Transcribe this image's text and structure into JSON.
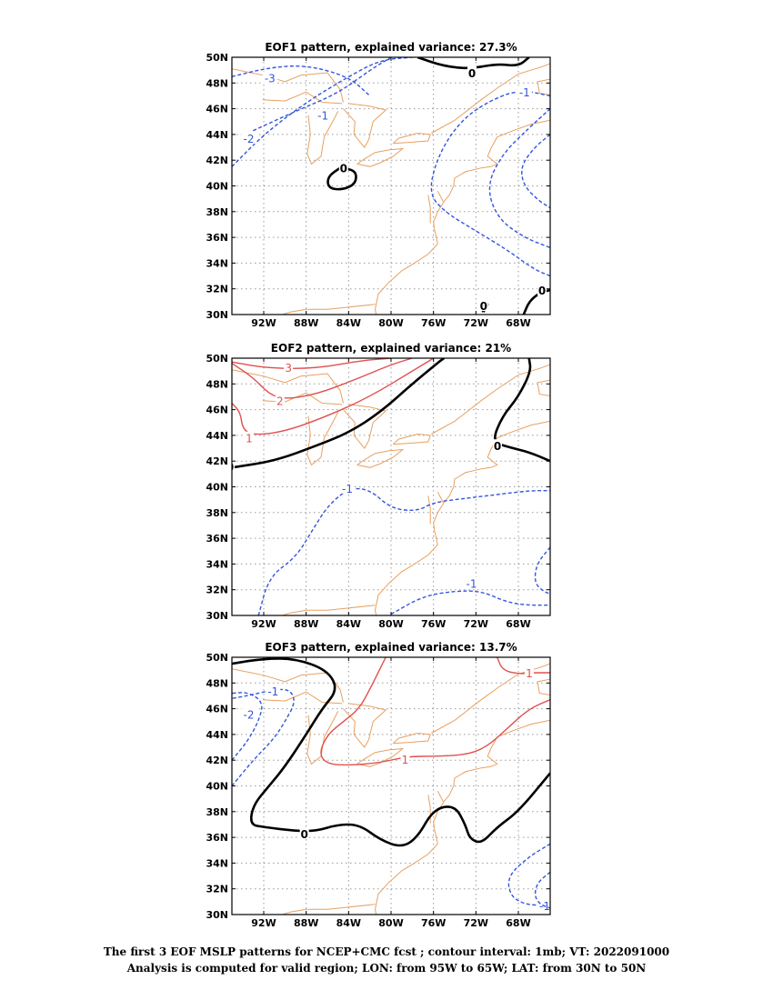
{
  "panels": [
    {
      "title": "EOF1 pattern, explained variance: 27.3%",
      "contours": [
        {
          "value": "-3",
          "color": "#3355dd",
          "dashed": true,
          "lon": [
            -95,
            -91.5,
            -88,
            -84,
            -82
          ],
          "lat": [
            48.5,
            49.2,
            49.4,
            48.5,
            47
          ],
          "label": "-3",
          "label_lon": -91.5,
          "label_lat": 48.4
        },
        {
          "value": "-2",
          "color": "#3355dd",
          "dashed": true,
          "lon": [
            -95,
            -92,
            -88,
            -84,
            -81,
            -78
          ],
          "lat": [
            41.5,
            44,
            46.5,
            48.5,
            49.8,
            50
          ],
          "label": "-2",
          "label_lon": -93.5,
          "label_lat": 43.7
        },
        {
          "value": "-1",
          "color": "#3355dd",
          "dashed": true,
          "lon": [
            -93,
            -89,
            -85,
            -82,
            -80
          ],
          "lat": [
            44.3,
            45.8,
            47.2,
            49,
            50
          ],
          "label": "-1",
          "label_lon": -86.5,
          "label_lat": 45.5
        },
        {
          "value": "-1",
          "color": "#3355dd",
          "dashed": true,
          "lon": [
            -65,
            -68,
            -71,
            -73.5,
            -75.5,
            -76.5,
            -75,
            -72,
            -69,
            -66.5,
            -65
          ],
          "lat": [
            47,
            47.5,
            46.5,
            45,
            42.5,
            39.5,
            38,
            36.5,
            35,
            33.5,
            33
          ],
          "label": "-1",
          "label_lon": -67.5,
          "label_lat": 47.3
        },
        {
          "value": "-2",
          "color": "#3355dd",
          "dashed": true,
          "lon": [
            -65,
            -67,
            -69.5,
            -71,
            -70,
            -67.5,
            -65
          ],
          "lat": [
            46,
            44.5,
            42.5,
            40,
            37.5,
            36,
            35.2
          ],
          "label": "",
          "label_lon": 0,
          "label_lat": 0
        },
        {
          "value": "-3",
          "color": "#3355dd",
          "dashed": true,
          "lon": [
            -65,
            -66.5,
            -67.8,
            -67.5,
            -66,
            -65
          ],
          "lat": [
            44,
            43,
            41.5,
            40,
            38.8,
            38.3
          ],
          "label": "",
          "label_lon": 0,
          "label_lat": 0
        },
        {
          "value": "0",
          "color": "#000000",
          "dashed": false,
          "lon": [
            -77.5,
            -75,
            -72.5,
            -70,
            -68,
            -67
          ],
          "lat": [
            50,
            49.3,
            49.1,
            49.5,
            49.3,
            50
          ],
          "label": "0",
          "label_lon": -72.2,
          "label_lat": 48.8
        },
        {
          "value": "0",
          "color": "#000000",
          "dashed": false,
          "lon": [
            -84.8,
            -83.3,
            -83.3,
            -84.5,
            -85.9,
            -86,
            -84.8
          ],
          "lat": [
            41.4,
            41.2,
            40.2,
            39.7,
            39.8,
            40.7,
            41.4
          ],
          "label": "0",
          "label_lon": -84.3,
          "label_lat": 41.4
        },
        {
          "value": "0",
          "color": "#000000",
          "dashed": false,
          "lon": [
            -67.5,
            -67,
            -66,
            -65
          ],
          "lat": [
            30,
            31,
            31.7,
            31.9
          ],
          "label": "0",
          "label_lon": -65.6,
          "label_lat": 31.9
        },
        {
          "value": "0",
          "color": "#000000",
          "dashed": false,
          "lon": [
            -71.3,
            -70.8,
            -71.2,
            -71.6,
            -71.3
          ],
          "lat": [
            30.2,
            30.8,
            31.1,
            30.7,
            30.2
          ],
          "label": "0",
          "label_lon": -71.1,
          "label_lat": 30.7
        }
      ]
    },
    {
      "title": "EOF2 pattern, explained variance: 21%",
      "contours": [
        {
          "value": "3",
          "color": "#e05050",
          "dashed": false,
          "lon": [
            -95,
            -91.5,
            -87,
            -83,
            -80
          ],
          "lat": [
            49.7,
            49.2,
            49.2,
            49.8,
            50
          ],
          "label": "3",
          "label_lon": -89.5,
          "label_lat": 49.3
        },
        {
          "value": "2",
          "color": "#e05050",
          "dashed": false,
          "lon": [
            -95,
            -93,
            -91.5,
            -90,
            -87,
            -83.5,
            -80,
            -78
          ],
          "lat": [
            49.6,
            48.5,
            47.2,
            46.8,
            47.2,
            48.3,
            49.5,
            50
          ],
          "label": "2",
          "label_lon": -90.3,
          "label_lat": 46.7
        },
        {
          "value": "1",
          "color": "#e05050",
          "dashed": false,
          "lon": [
            -95,
            -94.2,
            -94,
            -93,
            -90,
            -86,
            -82,
            -78,
            -76
          ],
          "lat": [
            46.5,
            45.8,
            44.5,
            44,
            44.3,
            45.5,
            47,
            49,
            50
          ],
          "label": "1",
          "label_lon": -93.2,
          "label_lat": 43.8
        },
        {
          "value": "0",
          "color": "#000000",
          "dashed": false,
          "lon": [
            -95,
            -91,
            -87,
            -84,
            -81,
            -78,
            -75.5,
            -75
          ],
          "lat": [
            41.5,
            42,
            43.2,
            44.2,
            45.8,
            48,
            49.7,
            50
          ],
          "label": "0",
          "label_lon": -95,
          "label_lat": 41.6
        },
        {
          "value": "0",
          "color": "#000000",
          "dashed": false,
          "lon": [
            -67,
            -66.8,
            -68,
            -69.5,
            -70.5,
            -69,
            -67,
            -65
          ],
          "lat": [
            50,
            49,
            47,
            45.5,
            43.5,
            43.1,
            42.7,
            42
          ],
          "label": "0",
          "label_lon": -69.8,
          "label_lat": 43.2
        },
        {
          "value": "-1",
          "color": "#3355dd",
          "dashed": true,
          "lon": [
            -92.5,
            -91.5,
            -89,
            -87.5,
            -86,
            -84,
            -82,
            -80,
            -77.5,
            -76,
            -73,
            -70,
            -67,
            -65
          ],
          "lat": [
            30,
            33,
            34.5,
            36.5,
            38.5,
            39.9,
            39.8,
            38.3,
            38.1,
            38.8,
            39.1,
            39.4,
            39.7,
            39.7
          ],
          "label": "-1",
          "label_lon": -84.2,
          "label_lat": 39.9
        },
        {
          "value": "-1",
          "color": "#3355dd",
          "dashed": true,
          "lon": [
            -80,
            -77,
            -74,
            -71.5,
            -69,
            -67,
            -65
          ],
          "lat": [
            30.1,
            31.5,
            31.9,
            31.9,
            31,
            30.8,
            30.8
          ],
          "label": "-1",
          "label_lon": -72.5,
          "label_lat": 32.5
        },
        {
          "value": "-2",
          "color": "#3355dd",
          "dashed": true,
          "lon": [
            -65,
            -66.3,
            -66.5,
            -65.5,
            -65
          ],
          "lat": [
            35.3,
            34,
            32.5,
            31.8,
            31.7
          ],
          "label": "",
          "label_lon": 0,
          "label_lat": 0
        }
      ]
    },
    {
      "title": "EOF3 pattern, explained variance: 13.7%",
      "contours": [
        {
          "value": "-2",
          "color": "#3355dd",
          "dashed": true,
          "lon": [
            -95,
            -93.5,
            -92.5,
            -92,
            -93.5,
            -95
          ],
          "lat": [
            42,
            43.5,
            45,
            46.5,
            47.3,
            47.2
          ],
          "label": "-2",
          "label_lon": -93.5,
          "label_lat": 45.6
        },
        {
          "value": "-1",
          "color": "#3355dd",
          "dashed": true,
          "lon": [
            -95,
            -93,
            -91,
            -90,
            -89,
            -89.5,
            -91,
            -93,
            -95
          ],
          "lat": [
            40,
            42,
            43.7,
            45,
            46.5,
            47.5,
            47.5,
            47.1,
            46.8
          ],
          "label": "-1",
          "label_lon": -91.2,
          "label_lat": 47.4
        },
        {
          "value": "0",
          "color": "#000000",
          "dashed": false,
          "lon": [
            -95,
            -92,
            -89,
            -86,
            -85,
            -86.5,
            -88,
            -90,
            -91.5,
            -93,
            -93.3,
            -92,
            -89,
            -87,
            -85,
            -83,
            -81,
            -79,
            -77.5,
            -76,
            -74,
            -73,
            -72.6,
            -71.5,
            -70,
            -68,
            -65
          ],
          "lat": [
            49.5,
            49.9,
            49.9,
            49,
            47.5,
            46,
            44,
            41.5,
            40,
            38.5,
            37,
            36.8,
            36.5,
            36.5,
            37,
            37,
            35.8,
            35.2,
            36,
            38.2,
            38.5,
            37,
            35.9,
            35.5,
            36.8,
            38,
            41
          ],
          "label": "0",
          "label_lon": -88,
          "label_lat": 36.3
        },
        {
          "value": "1",
          "color": "#e05050",
          "dashed": false,
          "lon": [
            -80.5,
            -82,
            -83,
            -84.5,
            -86,
            -86.8,
            -86,
            -84,
            -81,
            -78.5,
            -76,
            -73,
            -71,
            -69,
            -67,
            -65
          ],
          "lat": [
            50,
            47.5,
            46,
            45,
            44,
            42.5,
            41.7,
            41.6,
            41.8,
            42.3,
            42.3,
            42.4,
            43,
            44.5,
            46,
            46.7
          ],
          "label": "1",
          "label_lon": -78.5,
          "label_lat": 42.1
        },
        {
          "value": "1",
          "color": "#e05050",
          "dashed": false,
          "lon": [
            -70,
            -69.5,
            -68,
            -66.5,
            -65
          ],
          "lat": [
            50,
            49,
            48.7,
            48.8,
            48.8
          ],
          "label": "1",
          "label_lon": -66.8,
          "label_lat": 48.8
        },
        {
          "value": "-1",
          "color": "#3355dd",
          "dashed": true,
          "lon": [
            -65,
            -67,
            -69,
            -68.8,
            -67.5,
            -65.5,
            -65
          ],
          "lat": [
            35.5,
            34.5,
            33,
            31.5,
            30.8,
            30.7,
            30.7
          ],
          "label": "-1",
          "label_lon": -65.6,
          "label_lat": 30.7
        },
        {
          "value": "-2",
          "color": "#3355dd",
          "dashed": true,
          "lon": [
            -65,
            -66.2,
            -66.5,
            -66,
            -65
          ],
          "lat": [
            33.3,
            32.5,
            31.5,
            30.8,
            30.5
          ],
          "label": "",
          "label_lon": 0,
          "label_lat": 0
        }
      ]
    }
  ],
  "lon_ticks": [
    "92W",
    "88W",
    "84W",
    "80W",
    "76W",
    "72W",
    "68W"
  ],
  "lon_tick_values": [
    -92,
    -88,
    -84,
    -80,
    -76,
    -72,
    -68
  ],
  "lat_ticks": [
    "30N",
    "32N",
    "34N",
    "36N",
    "38N",
    "40N",
    "42N",
    "44N",
    "46N",
    "48N",
    "50N"
  ],
  "lat_tick_values": [
    30,
    32,
    34,
    36,
    38,
    40,
    42,
    44,
    46,
    48,
    50
  ],
  "lon_range": [
    -95,
    -65
  ],
  "lat_range": [
    30,
    50
  ],
  "colors": {
    "coast": "#e8a060",
    "grid": "#999999",
    "negative": "#3355dd",
    "positive": "#e05050",
    "zero": "#000000"
  },
  "caption": {
    "line1": "The first 3 EOF MSLP patterns for NCEP+CMC fcst ; contour interval: 1mb; VT: 2022091000",
    "line2": "Analysis is computed for valid region; LON: from 95W to 65W; LAT: from 30N to 50N"
  }
}
